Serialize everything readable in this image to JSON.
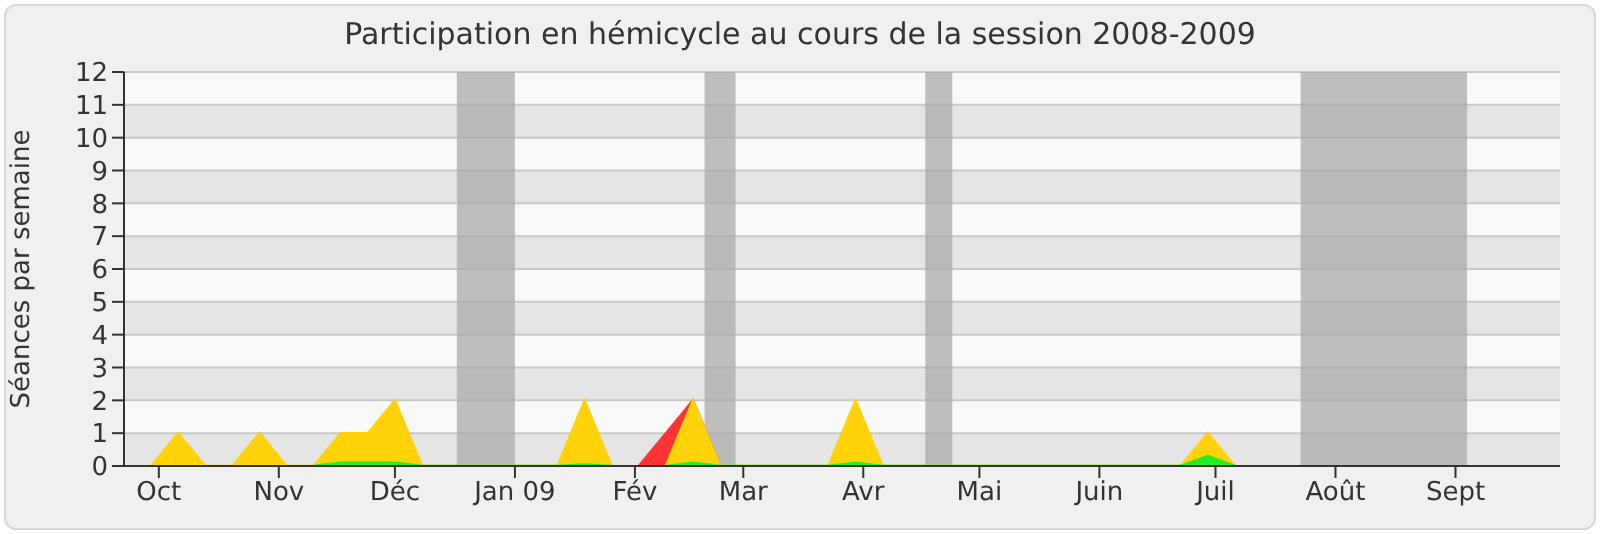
{
  "chart_data": {
    "type": "area",
    "title": "Participation en hémicycle au cours de la session 2008-2009",
    "ylabel": "Séances par semaine",
    "x": [
      "2008-09-29",
      "2008-10-06",
      "2008-10-13",
      "2008-10-20",
      "2008-10-27",
      "2008-11-03",
      "2008-11-10",
      "2008-11-17",
      "2008-11-24",
      "2008-12-01",
      "2008-12-08",
      "2009-01-12",
      "2009-01-19",
      "2009-01-26",
      "2009-02-02",
      "2009-02-09",
      "2009-02-16",
      "2009-02-23",
      "2009-03-23",
      "2009-03-30",
      "2009-04-06",
      "2009-06-22",
      "2009-06-29",
      "2009-07-06"
    ],
    "series": [
      {
        "color": "#ff3333",
        "values": [
          null,
          null,
          null,
          null,
          null,
          null,
          null,
          null,
          null,
          null,
          null,
          null,
          null,
          null,
          0,
          1,
          2,
          0,
          null,
          null,
          null,
          null,
          null,
          null
        ]
      },
      {
        "color": "#ffd20a",
        "values": [
          0,
          1,
          0,
          0,
          1,
          0,
          0,
          1,
          1,
          2,
          0,
          0,
          2,
          0,
          null,
          0,
          2,
          0,
          0,
          2,
          0,
          0,
          1,
          0
        ]
      },
      {
        "color": "#22ee22",
        "values": [
          null,
          null,
          null,
          null,
          null,
          null,
          0,
          0.1,
          0.1,
          0.1,
          0,
          0,
          0.05,
          0,
          null,
          0,
          0.1,
          0,
          0,
          0.1,
          0,
          0,
          0.3,
          0
        ]
      }
    ],
    "xlim": [
      "2008-09-22",
      "2009-09-28"
    ],
    "xticks": [
      {
        "value": "2008-10-01",
        "label": "Oct"
      },
      {
        "value": "2008-11-01",
        "label": "Nov"
      },
      {
        "value": "2008-12-01",
        "label": "Déc"
      },
      {
        "value": "2009-01-01",
        "label": "Jan 09"
      },
      {
        "value": "2009-02-01",
        "label": "Fév"
      },
      {
        "value": "2009-03-01",
        "label": "Mar"
      },
      {
        "value": "2009-04-01",
        "label": "Avr"
      },
      {
        "value": "2009-05-01",
        "label": "Mai"
      },
      {
        "value": "2009-06-01",
        "label": "Juin"
      },
      {
        "value": "2009-07-01",
        "label": "Juil"
      },
      {
        "value": "2009-08-01",
        "label": "Août"
      },
      {
        "value": "2009-09-01",
        "label": "Sept"
      }
    ],
    "ylim": [
      0,
      12
    ],
    "yticks": [
      0,
      1,
      2,
      3,
      4,
      5,
      6,
      7,
      8,
      9,
      10,
      11,
      12
    ],
    "bands": [
      {
        "axis": "x",
        "from": "2008-12-17",
        "to": "2009-01-01",
        "color": "#aaaaaa"
      },
      {
        "axis": "x",
        "from": "2009-02-19",
        "to": "2009-02-27",
        "color": "#aaaaaa"
      },
      {
        "axis": "x",
        "from": "2009-04-17",
        "to": "2009-04-24",
        "color": "#aaaaaa"
      },
      {
        "axis": "x",
        "from": "2009-07-23",
        "to": "2009-09-04",
        "color": "#aaaaaa"
      }
    ],
    "grid": "y",
    "legend": false
  }
}
